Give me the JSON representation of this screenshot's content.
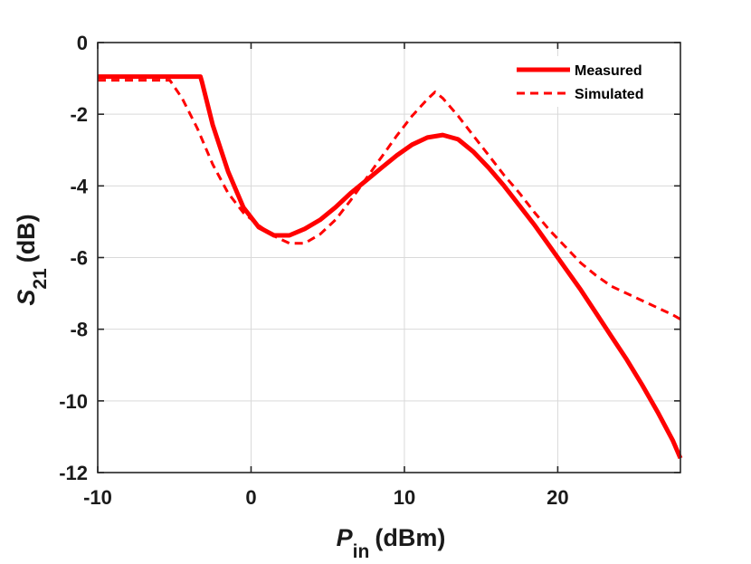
{
  "chart_data": {
    "type": "line",
    "title": "",
    "xlabel": {
      "main": "P",
      "sub": "in",
      "unit": "(dBm)"
    },
    "ylabel": {
      "main": "S",
      "sub": "21",
      "unit": "(dB)"
    },
    "xlim": [
      -10,
      28
    ],
    "ylim": [
      -12,
      0
    ],
    "xticks": [
      -10,
      0,
      10,
      20
    ],
    "yticks": [
      0,
      -2,
      -4,
      -6,
      -8,
      -10,
      -12
    ],
    "xtick_labels": [
      "-10",
      "0",
      "10",
      "20"
    ],
    "ytick_labels": [
      "0",
      "-2",
      "-4",
      "-6",
      "-8",
      "-10",
      "-12"
    ],
    "grid": true,
    "legend_position": "top-right",
    "color": "#ff0000",
    "series": [
      {
        "name": "Measured",
        "style": "solid",
        "x": [
          -10,
          -3.3,
          -3.2,
          -2.5,
          -1.5,
          -0.5,
          0.5,
          1.5,
          2.5,
          3.5,
          4.5,
          5.5,
          6.5,
          7.5,
          8.5,
          9.5,
          10.5,
          11.5,
          12.5,
          13.5,
          14.5,
          15.5,
          16.5,
          17.5,
          18.5,
          19.5,
          20.5,
          21.5,
          22.5,
          23.5,
          24.5,
          25.5,
          26.5,
          27.5,
          28
        ],
        "y": [
          -0.95,
          -0.95,
          -1.1,
          -2.3,
          -3.6,
          -4.6,
          -5.15,
          -5.38,
          -5.38,
          -5.2,
          -4.95,
          -4.6,
          -4.2,
          -3.85,
          -3.5,
          -3.15,
          -2.85,
          -2.65,
          -2.58,
          -2.7,
          -3.05,
          -3.5,
          -4.0,
          -4.55,
          -5.1,
          -5.7,
          -6.3,
          -6.9,
          -7.55,
          -8.2,
          -8.85,
          -9.55,
          -10.3,
          -11.1,
          -11.6
        ]
      },
      {
        "name": "Simulated",
        "style": "dashed",
        "x": [
          -10,
          -5.3,
          -4.5,
          -3.5,
          -2.5,
          -1.5,
          -0.5,
          0.5,
          1.5,
          2.5,
          3.5,
          4.5,
          5.5,
          6.5,
          7.5,
          8.5,
          9.5,
          10.5,
          11.5,
          12,
          12.5,
          13.5,
          14.5,
          15.5,
          16.5,
          17.5,
          18.5,
          19.5,
          20.5,
          21.5,
          22.5,
          23.5,
          24.5,
          25.5,
          26.5,
          27.5,
          28
        ],
        "y": [
          -1.05,
          -1.05,
          -1.55,
          -2.4,
          -3.4,
          -4.2,
          -4.75,
          -5.1,
          -5.4,
          -5.6,
          -5.6,
          -5.35,
          -4.95,
          -4.4,
          -3.8,
          -3.2,
          -2.6,
          -2.05,
          -1.58,
          -1.38,
          -1.55,
          -2.05,
          -2.6,
          -3.15,
          -3.7,
          -4.2,
          -4.75,
          -5.25,
          -5.7,
          -6.15,
          -6.5,
          -6.8,
          -7.0,
          -7.2,
          -7.4,
          -7.6,
          -7.72
        ]
      }
    ]
  }
}
